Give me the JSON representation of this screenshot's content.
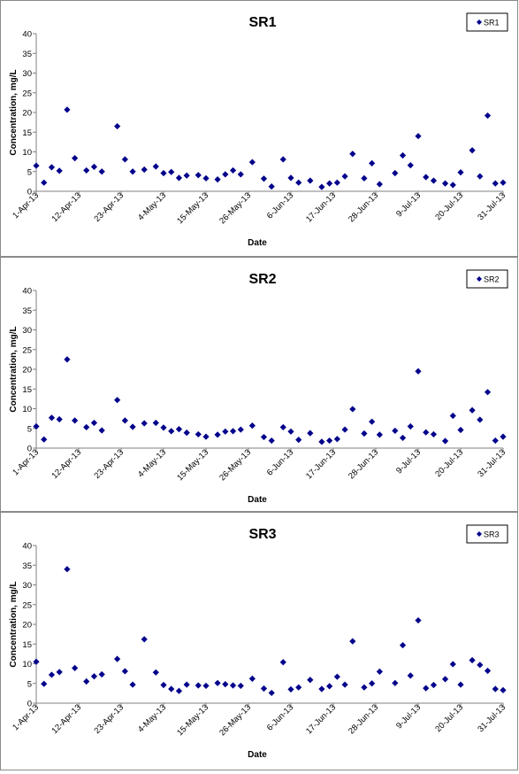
{
  "chart_data": [
    {
      "type": "scatter",
      "title": "SR1",
      "xlabel": "Date",
      "ylabel": "Concentration, mg/L",
      "ylim": [
        0,
        40
      ],
      "yticks": [
        "0",
        "5",
        "10",
        "15",
        "20",
        "25",
        "30",
        "35",
        "40"
      ],
      "xlim": [
        "2013-04-01",
        "2013-07-31"
      ],
      "xticks": [
        "1-Apr-13",
        "12-Apr-13",
        "23-Apr-13",
        "4-May-13",
        "15-May-13",
        "26-May-13",
        "6-Jun-13",
        "17-Jun-13",
        "28-Jun-13",
        "9-Jul-13",
        "20-Jul-13",
        "31-Jul-13"
      ],
      "grid": false,
      "legend": "top-right",
      "series": [
        {
          "name": "SR1",
          "color": "#00008b",
          "marker": "diamond",
          "points": [
            {
              "x": "2013-04-01",
              "y": 6.5
            },
            {
              "x": "2013-04-03",
              "y": 2.2
            },
            {
              "x": "2013-04-05",
              "y": 6.1
            },
            {
              "x": "2013-04-07",
              "y": 5.2
            },
            {
              "x": "2013-04-09",
              "y": 20.7
            },
            {
              "x": "2013-04-11",
              "y": 8.4
            },
            {
              "x": "2013-04-14",
              "y": 5.3
            },
            {
              "x": "2013-04-16",
              "y": 6.2
            },
            {
              "x": "2013-04-18",
              "y": 5.0
            },
            {
              "x": "2013-04-22",
              "y": 16.5
            },
            {
              "x": "2013-04-24",
              "y": 8.1
            },
            {
              "x": "2013-04-26",
              "y": 5.0
            },
            {
              "x": "2013-04-29",
              "y": 5.5
            },
            {
              "x": "2013-05-02",
              "y": 6.3
            },
            {
              "x": "2013-05-04",
              "y": 4.6
            },
            {
              "x": "2013-05-06",
              "y": 4.9
            },
            {
              "x": "2013-05-08",
              "y": 3.4
            },
            {
              "x": "2013-05-10",
              "y": 4.0
            },
            {
              "x": "2013-05-13",
              "y": 4.1
            },
            {
              "x": "2013-05-15",
              "y": 3.3
            },
            {
              "x": "2013-05-18",
              "y": 3.0
            },
            {
              "x": "2013-05-20",
              "y": 4.3
            },
            {
              "x": "2013-05-22",
              "y": 5.3
            },
            {
              "x": "2013-05-24",
              "y": 4.3
            },
            {
              "x": "2013-05-27",
              "y": 7.4
            },
            {
              "x": "2013-05-30",
              "y": 3.2
            },
            {
              "x": "2013-06-01",
              "y": 1.2
            },
            {
              "x": "2013-06-04",
              "y": 8.1
            },
            {
              "x": "2013-06-06",
              "y": 3.4
            },
            {
              "x": "2013-06-08",
              "y": 2.2
            },
            {
              "x": "2013-06-11",
              "y": 2.7
            },
            {
              "x": "2013-06-14",
              "y": 1.1
            },
            {
              "x": "2013-06-16",
              "y": 2.0
            },
            {
              "x": "2013-06-18",
              "y": 2.2
            },
            {
              "x": "2013-06-20",
              "y": 3.8
            },
            {
              "x": "2013-06-22",
              "y": 9.5
            },
            {
              "x": "2013-06-25",
              "y": 3.3
            },
            {
              "x": "2013-06-27",
              "y": 7.1
            },
            {
              "x": "2013-06-29",
              "y": 1.8
            },
            {
              "x": "2013-07-03",
              "y": 4.6
            },
            {
              "x": "2013-07-05",
              "y": 9.1
            },
            {
              "x": "2013-07-07",
              "y": 6.6
            },
            {
              "x": "2013-07-09",
              "y": 14.0
            },
            {
              "x": "2013-07-11",
              "y": 3.6
            },
            {
              "x": "2013-07-13",
              "y": 2.7
            },
            {
              "x": "2013-07-16",
              "y": 2.0
            },
            {
              "x": "2013-07-18",
              "y": 1.6
            },
            {
              "x": "2013-07-20",
              "y": 4.8
            },
            {
              "x": "2013-07-23",
              "y": 10.4
            },
            {
              "x": "2013-07-25",
              "y": 3.8
            },
            {
              "x": "2013-07-27",
              "y": 19.2
            },
            {
              "x": "2013-07-29",
              "y": 2.0
            },
            {
              "x": "2013-07-31",
              "y": 2.2
            }
          ]
        }
      ]
    },
    {
      "type": "scatter",
      "title": "SR2",
      "xlabel": "Date",
      "ylabel": "Concentration, mg/L",
      "ylim": [
        0,
        40
      ],
      "yticks": [
        "0",
        "5",
        "10",
        "15",
        "20",
        "25",
        "30",
        "35",
        "40"
      ],
      "xlim": [
        "2013-04-01",
        "2013-07-31"
      ],
      "xticks": [
        "1-Apr-13",
        "12-Apr-13",
        "23-Apr-13",
        "4-May-13",
        "15-May-13",
        "26-May-13",
        "6-Jun-13",
        "17-Jun-13",
        "28-Jun-13",
        "9-Jul-13",
        "20-Jul-13",
        "31-Jul-13"
      ],
      "grid": false,
      "legend": "top-right",
      "series": [
        {
          "name": "SR2",
          "color": "#00008b",
          "marker": "diamond",
          "points": [
            {
              "x": "2013-04-01",
              "y": 5.5
            },
            {
              "x": "2013-04-03",
              "y": 2.2
            },
            {
              "x": "2013-04-05",
              "y": 7.7
            },
            {
              "x": "2013-04-07",
              "y": 7.3
            },
            {
              "x": "2013-04-09",
              "y": 22.5
            },
            {
              "x": "2013-04-11",
              "y": 7.0
            },
            {
              "x": "2013-04-14",
              "y": 5.3
            },
            {
              "x": "2013-04-16",
              "y": 6.4
            },
            {
              "x": "2013-04-18",
              "y": 4.5
            },
            {
              "x": "2013-04-22",
              "y": 12.2
            },
            {
              "x": "2013-04-24",
              "y": 7.0
            },
            {
              "x": "2013-04-26",
              "y": 5.4
            },
            {
              "x": "2013-04-29",
              "y": 6.3
            },
            {
              "x": "2013-05-02",
              "y": 6.4
            },
            {
              "x": "2013-05-04",
              "y": 5.2
            },
            {
              "x": "2013-05-06",
              "y": 4.3
            },
            {
              "x": "2013-05-08",
              "y": 4.8
            },
            {
              "x": "2013-05-10",
              "y": 3.9
            },
            {
              "x": "2013-05-13",
              "y": 3.5
            },
            {
              "x": "2013-05-15",
              "y": 2.9
            },
            {
              "x": "2013-05-18",
              "y": 3.4
            },
            {
              "x": "2013-05-20",
              "y": 4.2
            },
            {
              "x": "2013-05-22",
              "y": 4.3
            },
            {
              "x": "2013-05-24",
              "y": 4.7
            },
            {
              "x": "2013-05-27",
              "y": 5.7
            },
            {
              "x": "2013-05-30",
              "y": 2.8
            },
            {
              "x": "2013-06-01",
              "y": 1.9
            },
            {
              "x": "2013-06-04",
              "y": 5.3
            },
            {
              "x": "2013-06-06",
              "y": 4.2
            },
            {
              "x": "2013-06-08",
              "y": 2.1
            },
            {
              "x": "2013-06-11",
              "y": 3.8
            },
            {
              "x": "2013-06-14",
              "y": 1.6
            },
            {
              "x": "2013-06-16",
              "y": 1.9
            },
            {
              "x": "2013-06-18",
              "y": 2.3
            },
            {
              "x": "2013-06-20",
              "y": 4.7
            },
            {
              "x": "2013-06-22",
              "y": 9.9
            },
            {
              "x": "2013-06-25",
              "y": 3.7
            },
            {
              "x": "2013-06-27",
              "y": 6.7
            },
            {
              "x": "2013-06-29",
              "y": 3.4
            },
            {
              "x": "2013-07-03",
              "y": 4.4
            },
            {
              "x": "2013-07-05",
              "y": 2.6
            },
            {
              "x": "2013-07-07",
              "y": 5.5
            },
            {
              "x": "2013-07-09",
              "y": 19.5
            },
            {
              "x": "2013-07-11",
              "y": 4.0
            },
            {
              "x": "2013-07-13",
              "y": 3.5
            },
            {
              "x": "2013-07-16",
              "y": 1.8
            },
            {
              "x": "2013-07-18",
              "y": 8.2
            },
            {
              "x": "2013-07-20",
              "y": 4.6
            },
            {
              "x": "2013-07-23",
              "y": 9.6
            },
            {
              "x": "2013-07-25",
              "y": 7.2
            },
            {
              "x": "2013-07-27",
              "y": 14.2
            },
            {
              "x": "2013-07-29",
              "y": 1.9
            },
            {
              "x": "2013-07-31",
              "y": 2.9
            }
          ]
        }
      ]
    },
    {
      "type": "scatter",
      "title": "SR3",
      "xlabel": "Date",
      "ylabel": "Concentration, mg/L",
      "ylim": [
        0,
        40
      ],
      "yticks": [
        "0",
        "5",
        "10",
        "15",
        "20",
        "25",
        "30",
        "35",
        "40"
      ],
      "xlim": [
        "2013-04-01",
        "2013-07-31"
      ],
      "xticks": [
        "1-Apr-13",
        "12-Apr-13",
        "23-Apr-13",
        "4-May-13",
        "15-May-13",
        "26-May-13",
        "6-Jun-13",
        "17-Jun-13",
        "28-Jun-13",
        "9-Jul-13",
        "20-Jul-13",
        "31-Jul-13"
      ],
      "grid": false,
      "legend": "top-right",
      "series": [
        {
          "name": "SR3",
          "color": "#00008b",
          "marker": "diamond",
          "points": [
            {
              "x": "2013-04-01",
              "y": 10.5
            },
            {
              "x": "2013-04-03",
              "y": 4.9
            },
            {
              "x": "2013-04-05",
              "y": 7.2
            },
            {
              "x": "2013-04-07",
              "y": 7.9
            },
            {
              "x": "2013-04-09",
              "y": 34.0
            },
            {
              "x": "2013-04-11",
              "y": 8.9
            },
            {
              "x": "2013-04-14",
              "y": 5.5
            },
            {
              "x": "2013-04-16",
              "y": 6.8
            },
            {
              "x": "2013-04-18",
              "y": 7.3
            },
            {
              "x": "2013-04-22",
              "y": 11.2
            },
            {
              "x": "2013-04-24",
              "y": 8.1
            },
            {
              "x": "2013-04-26",
              "y": 4.7
            },
            {
              "x": "2013-04-29",
              "y": 16.2
            },
            {
              "x": "2013-05-02",
              "y": 7.8
            },
            {
              "x": "2013-05-04",
              "y": 4.6
            },
            {
              "x": "2013-05-06",
              "y": 3.6
            },
            {
              "x": "2013-05-08",
              "y": 3.1
            },
            {
              "x": "2013-05-10",
              "y": 4.7
            },
            {
              "x": "2013-05-13",
              "y": 4.5
            },
            {
              "x": "2013-05-15",
              "y": 4.4
            },
            {
              "x": "2013-05-18",
              "y": 5.1
            },
            {
              "x": "2013-05-20",
              "y": 4.8
            },
            {
              "x": "2013-05-22",
              "y": 4.5
            },
            {
              "x": "2013-05-24",
              "y": 4.4
            },
            {
              "x": "2013-05-27",
              "y": 6.2
            },
            {
              "x": "2013-05-30",
              "y": 3.7
            },
            {
              "x": "2013-06-01",
              "y": 2.6
            },
            {
              "x": "2013-06-04",
              "y": 10.4
            },
            {
              "x": "2013-06-06",
              "y": 3.5
            },
            {
              "x": "2013-06-08",
              "y": 4.0
            },
            {
              "x": "2013-06-11",
              "y": 5.9
            },
            {
              "x": "2013-06-14",
              "y": 3.6
            },
            {
              "x": "2013-06-16",
              "y": 4.3
            },
            {
              "x": "2013-06-18",
              "y": 6.7
            },
            {
              "x": "2013-06-20",
              "y": 4.7
            },
            {
              "x": "2013-06-22",
              "y": 15.7
            },
            {
              "x": "2013-06-25",
              "y": 4.0
            },
            {
              "x": "2013-06-27",
              "y": 5.0
            },
            {
              "x": "2013-06-29",
              "y": 8.0
            },
            {
              "x": "2013-07-03",
              "y": 5.1
            },
            {
              "x": "2013-07-05",
              "y": 14.7
            },
            {
              "x": "2013-07-07",
              "y": 7.0
            },
            {
              "x": "2013-07-09",
              "y": 21.0
            },
            {
              "x": "2013-07-11",
              "y": 3.8
            },
            {
              "x": "2013-07-13",
              "y": 4.6
            },
            {
              "x": "2013-07-16",
              "y": 6.1
            },
            {
              "x": "2013-07-18",
              "y": 9.9
            },
            {
              "x": "2013-07-20",
              "y": 4.7
            },
            {
              "x": "2013-07-23",
              "y": 10.9
            },
            {
              "x": "2013-07-25",
              "y": 9.7
            },
            {
              "x": "2013-07-27",
              "y": 8.2
            },
            {
              "x": "2013-07-29",
              "y": 3.6
            },
            {
              "x": "2013-07-31",
              "y": 3.3
            }
          ]
        }
      ]
    }
  ]
}
